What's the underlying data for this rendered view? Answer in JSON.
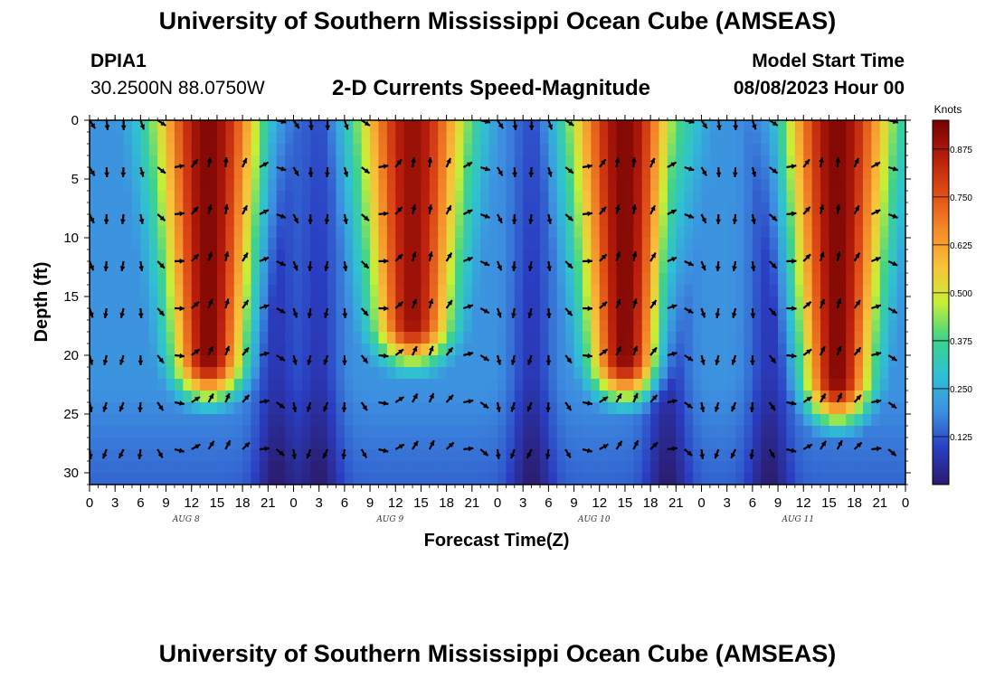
{
  "header": {
    "title": "University of Southern Mississippi Ocean Cube (AMSEAS)",
    "station": "DPIA1",
    "coords": "30.2500N  88.0750W",
    "plot_title": "2-D Currents Speed-Magnitude",
    "start_label": "Model Start Time",
    "start_value": "08/08/2023 Hour 00"
  },
  "footer": {
    "title": "University of Southern Mississippi Ocean Cube (AMSEAS)"
  },
  "colors": {
    "scale": [
      "#2b1a6b",
      "#2a3ec2",
      "#3d8fe0",
      "#2fc1d3",
      "#3fd38a",
      "#c8ef35",
      "#f8c23a",
      "#f38a28",
      "#df4d17",
      "#b71c0b",
      "#730303"
    ]
  },
  "chart_data": {
    "type": "heatmap",
    "title": "2-D Currents Speed-Magnitude",
    "xlabel": "Forecast Time(Z)",
    "ylabel": "Depth (ft)",
    "xlim": [
      0,
      96
    ],
    "ylim": [
      0,
      31
    ],
    "x_tick_labels": [
      "0",
      "3",
      "6",
      "9",
      "12",
      "15",
      "18",
      "21",
      "0",
      "3",
      "6",
      "9",
      "12",
      "15",
      "18",
      "21",
      "0",
      "3",
      "6",
      "9",
      "12",
      "15",
      "18",
      "21",
      "0",
      "3",
      "6",
      "9",
      "12",
      "15",
      "18",
      "21",
      "0"
    ],
    "y_ticks": [
      0,
      5,
      10,
      15,
      20,
      25,
      30
    ],
    "y_tick_labels": [
      "0",
      "5",
      "10",
      "15",
      "20",
      "25",
      "30"
    ],
    "day_labels": [
      "AUG 8",
      "AUG 9",
      "AUG 10",
      "AUG 11"
    ],
    "day_label_hours": [
      12,
      36,
      60,
      84
    ],
    "colorbar": {
      "label": "Knots",
      "ticks": [
        0.125,
        0.25,
        0.375,
        0.5,
        0.625,
        0.75,
        0.875
      ],
      "tick_labels": [
        "0.125",
        "0.250",
        "0.375",
        "0.500",
        "0.625",
        "0.750",
        "0.875"
      ],
      "range": [
        0,
        0.95
      ]
    },
    "high_speed_peaks": [
      {
        "hour": 14,
        "peak_knots": 0.93,
        "reaches_depth_ft": 20
      },
      {
        "hour": 38,
        "peak_knots": 0.9,
        "reaches_depth_ft": 17
      },
      {
        "hour": 63,
        "peak_knots": 0.93,
        "reaches_depth_ft": 20
      },
      {
        "hour": 88,
        "peak_knots": 0.93,
        "reaches_depth_ft": 22
      }
    ],
    "arrow_depths_ft": [
      0,
      4,
      8,
      12,
      16,
      20,
      24,
      28
    ],
    "arrow_interval_hours": 2
  }
}
